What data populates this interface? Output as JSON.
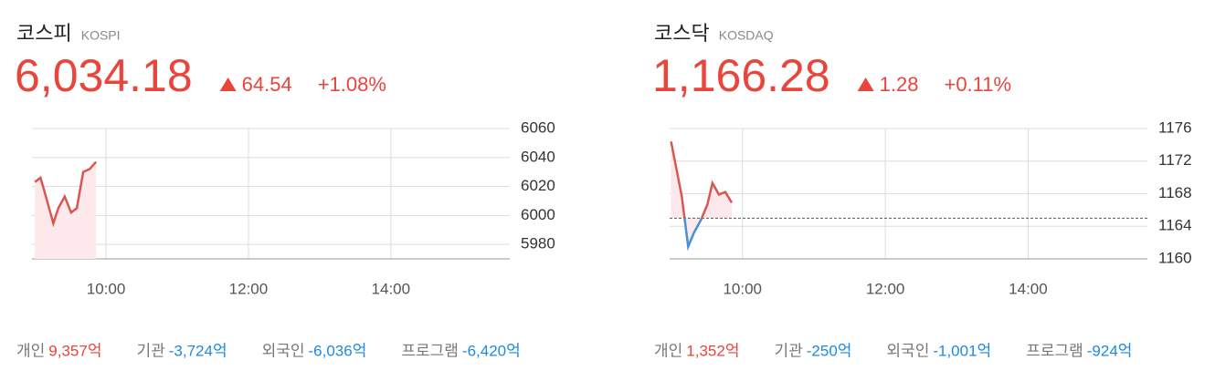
{
  "chart_data": [
    {
      "type": "line",
      "title": "코스피",
      "subtitle": "KOSPI",
      "price": "6,034.18",
      "change": "64.54",
      "change_pct": "+1.08%",
      "x": [
        9.0,
        9.08,
        9.15,
        9.26,
        9.33,
        9.42,
        9.51,
        9.59,
        9.68,
        9.77,
        9.86
      ],
      "values": [
        6023,
        6026,
        6014,
        5994.5,
        6005,
        6013,
        6002,
        6005,
        6030,
        6032,
        6037
      ],
      "color": "#d9574f",
      "fill": "#fde9ec",
      "xlim": [
        8.96,
        15.67
      ],
      "xticks": [
        {
          "value": 10,
          "label": "10:00"
        },
        {
          "value": 12,
          "label": "12:00"
        },
        {
          "value": 14,
          "label": "14:00"
        }
      ],
      "ylim": [
        5970,
        6060
      ],
      "yticks": [
        6060,
        6040,
        6020,
        6000,
        5980
      ],
      "grid": true,
      "investors": [
        {
          "label": "개인",
          "value": "9,357억"
        },
        {
          "label": "기관",
          "value": "-3,724억"
        },
        {
          "label": "외국인",
          "value": "-6,036억"
        },
        {
          "label": "프로그램",
          "value": "-6,420억"
        }
      ]
    },
    {
      "type": "line",
      "title": "코스닥",
      "subtitle": "KOSDAQ",
      "price": "1,166.28",
      "change": "1.28",
      "change_pct": "+0.11%",
      "x": [
        9.0,
        9.15,
        9.24,
        9.32,
        9.42,
        9.51,
        9.58,
        9.67,
        9.76,
        9.85
      ],
      "values": [
        1174.4,
        1167.7,
        1161.5,
        1163.2,
        1164.8,
        1166.7,
        1169.3,
        1167.9,
        1168.2,
        1166.9
      ],
      "color": "#d9574f",
      "below_color": "#4a8fdb",
      "fill": "#fde9ec",
      "baseline": 1165.0,
      "xlim": [
        8.98,
        15.67
      ],
      "xticks": [
        {
          "value": 10,
          "label": "10:00"
        },
        {
          "value": 12,
          "label": "12:00"
        },
        {
          "value": 14,
          "label": "14:00"
        }
      ],
      "ylim": [
        1160,
        1176
      ],
      "yticks": [
        1176,
        1172,
        1168,
        1164,
        1160
      ],
      "grid": true,
      "investors": [
        {
          "label": "개인",
          "value": "1,352억"
        },
        {
          "label": "기관",
          "value": "-250억"
        },
        {
          "label": "외국인",
          "value": "-1,001억"
        },
        {
          "label": "프로그램",
          "value": "-924억"
        }
      ]
    }
  ]
}
